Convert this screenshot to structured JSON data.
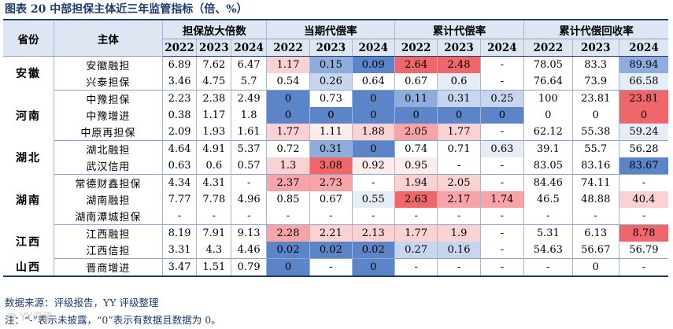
{
  "title": "图表 20 中部担保主体近三年监管指标（倍、%）",
  "header": {
    "province": "省份",
    "entity": "主体",
    "groups": [
      "担保放大倍数",
      "当期代偿率",
      "累计代偿率",
      "累计代偿回收率"
    ],
    "years": [
      "2022",
      "2023",
      "2024"
    ]
  },
  "colors": {
    "header_bg": "#dde6f2",
    "title_blue": "#1f3a6e",
    "red_strong": "#f0676b",
    "red_medium": "#f6a4a7",
    "red_light": "#fad2d4",
    "red_faint": "#fdeced",
    "blue_strong": "#5b85c8",
    "blue_medium": "#8eaddc",
    "blue_light": "#c7d6ee",
    "blue_faint": "#e6edf7"
  },
  "rows": [
    {
      "province": "安徽",
      "name": "安徽融担",
      "values": [
        "6.89",
        "7.62",
        "6.47",
        "1.17",
        "0.15",
        "0.09",
        "2.64",
        "2.48",
        "-",
        "78.05",
        "83.3",
        "89.94"
      ],
      "shades": [
        "",
        "",
        "",
        "red_light",
        "blue_medium",
        "blue_strong",
        "red_strong",
        "red_strong",
        "",
        "",
        "",
        "blue_medium"
      ]
    },
    {
      "province": "",
      "name": "兴泰担保",
      "values": [
        "3.46",
        "4.75",
        "5.7",
        "0.54",
        "0.26",
        "0.64",
        "0.67",
        "0.6",
        "-",
        "76.64",
        "73.9",
        "66.58"
      ],
      "shades": [
        "",
        "",
        "",
        "",
        "blue_light",
        "",
        "",
        "blue_faint",
        "",
        "",
        "",
        "blue_faint"
      ]
    },
    {
      "province": "河南",
      "name": "中豫担保",
      "values": [
        "2.23",
        "2.38",
        "2.49",
        "0",
        "0.73",
        "0",
        "0.11",
        "0.31",
        "0.25",
        "100",
        "23.81",
        "23.81"
      ],
      "shades": [
        "",
        "",
        "",
        "blue_strong",
        "",
        "blue_strong",
        "blue_medium",
        "blue_light",
        "blue_light",
        "",
        "",
        "red_strong"
      ]
    },
    {
      "province": "",
      "name": "中豫增进",
      "values": [
        "0.38",
        "1.17",
        "1.8",
        "0",
        "0",
        "0",
        "0",
        "0",
        "0",
        "0",
        "0",
        "0"
      ],
      "shades": [
        "",
        "",
        "",
        "blue_strong",
        "blue_strong",
        "blue_strong",
        "blue_strong",
        "blue_strong",
        "blue_strong",
        "",
        "",
        "red_strong"
      ]
    },
    {
      "province": "",
      "name": "中原再担保",
      "values": [
        "2.09",
        "1.93",
        "1.61",
        "1.77",
        "1.11",
        "1.88",
        "2.05",
        "1.77",
        "-",
        "62.12",
        "55.38",
        "59.24"
      ],
      "shades": [
        "",
        "",
        "",
        "red_light",
        "red_faint",
        "red_light",
        "red_medium",
        "red_light",
        "",
        "",
        "",
        "blue_faint"
      ]
    },
    {
      "province": "湖北",
      "name": "湖北融担",
      "values": [
        "4.64",
        "4.91",
        "5.37",
        "0.72",
        "0.31",
        "0",
        "0.74",
        "0.71",
        "0.63",
        "39.1",
        "55.7",
        "56.28"
      ],
      "shades": [
        "",
        "",
        "",
        "",
        "blue_medium",
        "blue_strong",
        "",
        "",
        "blue_faint",
        "",
        "",
        ""
      ]
    },
    {
      "province": "",
      "name": "武汉信用",
      "values": [
        "0.63",
        "0.6",
        "0.57",
        "1.3",
        "3.08",
        "0.92",
        "0.95",
        "-",
        "-",
        "83.05",
        "83.16",
        "83.67"
      ],
      "shades": [
        "",
        "",
        "",
        "red_light",
        "red_strong",
        "red_faint",
        "red_faint",
        "",
        "",
        "",
        "",
        "blue_strong"
      ]
    },
    {
      "province": "湖南",
      "name": "常德财鑫担保",
      "values": [
        "4.34",
        "4.31",
        "-",
        "2.37",
        "2.73",
        "-",
        "1.94",
        "2.05",
        "-",
        "84.46",
        "74.11",
        "-"
      ],
      "shades": [
        "",
        "",
        "",
        "red_medium",
        "red_medium",
        "",
        "red_light",
        "red_light",
        "",
        "",
        "",
        ""
      ]
    },
    {
      "province": "",
      "name": "湖南融担",
      "values": [
        "7.77",
        "7.78",
        "4.96",
        "0.85",
        "0.67",
        "0.55",
        "2.63",
        "2.17",
        "1.74",
        "46.5",
        "48.88",
        "40.4"
      ],
      "shades": [
        "",
        "",
        "",
        "",
        "",
        "blue_faint",
        "red_strong",
        "red_medium",
        "red_medium",
        "",
        "",
        "red_light"
      ]
    },
    {
      "province": "",
      "name": "湖南潭城担保",
      "values": [
        "-",
        "-",
        "-",
        "-",
        "-",
        "-",
        "-",
        "-",
        "-",
        "-",
        "-",
        "-"
      ],
      "shades": [
        "",
        "",
        "",
        "",
        "",
        "",
        "",
        "",
        "",
        "",
        "",
        ""
      ]
    },
    {
      "province": "江西",
      "name": "江西融担",
      "values": [
        "8.19",
        "7.91",
        "9.13",
        "2.28",
        "2.21",
        "2.13",
        "1.77",
        "1.9",
        "-",
        "5.31",
        "6.13",
        "8.78"
      ],
      "shades": [
        "",
        "",
        "",
        "red_medium",
        "red_light",
        "red_light",
        "red_light",
        "red_light",
        "",
        "",
        "",
        "red_strong"
      ]
    },
    {
      "province": "",
      "name": "江西信担",
      "values": [
        "3.31",
        "4.3",
        "4.46",
        "0.02",
        "0.02",
        "0.02",
        "0.27",
        "0.16",
        "-",
        "54.63",
        "56.67",
        "56.79"
      ],
      "shades": [
        "",
        "",
        "",
        "blue_strong",
        "blue_strong",
        "blue_strong",
        "blue_light",
        "blue_light",
        "",
        "",
        "",
        ""
      ]
    },
    {
      "province": "山西",
      "name": "晋商增进",
      "values": [
        "3.47",
        "1.51",
        "0.79",
        "0",
        "-",
        "0",
        "-",
        "-",
        "-",
        "-",
        "0",
        "-"
      ],
      "shades": [
        "",
        "",
        "",
        "blue_strong",
        "",
        "blue_strong",
        "",
        "",
        "",
        "",
        "",
        ""
      ]
    }
  ],
  "source_note": "数据来源：评级报告，YY 评级整理",
  "legend_note": "注：“-”表示未披露，“0”表示有数据且数据为 0。",
  "watermark": "@ YY评级"
}
